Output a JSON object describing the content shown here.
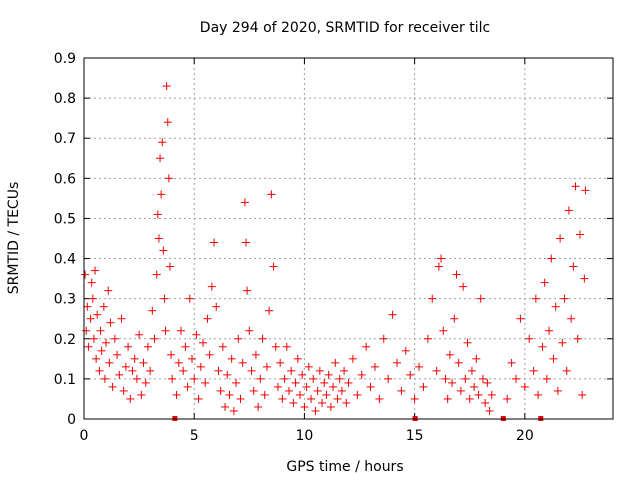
{
  "chart_data": {
    "type": "scatter",
    "title": "Day 294 of 2020, SRMTID for receiver tilc",
    "xlabel": "GPS time / hours",
    "ylabel": "SRMTID / TECUs",
    "xlim": [
      0,
      24
    ],
    "ylim": [
      0,
      0.9
    ],
    "xticks": [
      0,
      5,
      10,
      15,
      20
    ],
    "xtick_labels": [
      "0",
      "5",
      "10",
      "15",
      "20"
    ],
    "yticks": [
      0,
      0.1,
      0.2,
      0.3,
      0.4,
      0.5,
      0.6,
      0.7,
      0.8,
      0.9
    ],
    "ytick_labels": [
      "0",
      "0.1",
      "0.2",
      "0.3",
      "0.4",
      "0.5",
      "0.6",
      "0.7",
      "0.8",
      "0.9"
    ],
    "grid": true,
    "marker": "+",
    "color": "#ee0000",
    "series": [
      {
        "name": "SRMTID",
        "points": [
          [
            0.05,
            0.36
          ],
          [
            0.1,
            0.22
          ],
          [
            0.15,
            0.28
          ],
          [
            0.2,
            0.18
          ],
          [
            0.3,
            0.25
          ],
          [
            0.35,
            0.34
          ],
          [
            0.4,
            0.3
          ],
          [
            0.45,
            0.2
          ],
          [
            0.5,
            0.37
          ],
          [
            0.55,
            0.15
          ],
          [
            0.6,
            0.26
          ],
          [
            0.7,
            0.12
          ],
          [
            0.75,
            0.22
          ],
          [
            0.8,
            0.17
          ],
          [
            0.9,
            0.28
          ],
          [
            0.95,
            0.1
          ],
          [
            1.0,
            0.19
          ],
          [
            1.1,
            0.32
          ],
          [
            1.15,
            0.14
          ],
          [
            1.2,
            0.24
          ],
          [
            1.3,
            0.08
          ],
          [
            1.4,
            0.2
          ],
          [
            1.5,
            0.16
          ],
          [
            1.6,
            0.11
          ],
          [
            1.7,
            0.25
          ],
          [
            1.8,
            0.07
          ],
          [
            1.9,
            0.13
          ],
          [
            2.0,
            0.18
          ],
          [
            2.1,
            0.05
          ],
          [
            2.2,
            0.12
          ],
          [
            2.3,
            0.15
          ],
          [
            2.4,
            0.1
          ],
          [
            2.5,
            0.21
          ],
          [
            2.6,
            0.06
          ],
          [
            2.7,
            0.14
          ],
          [
            2.8,
            0.09
          ],
          [
            2.9,
            0.18
          ],
          [
            3.0,
            0.12
          ],
          [
            3.1,
            0.27
          ],
          [
            3.2,
            0.2
          ],
          [
            3.3,
            0.36
          ],
          [
            3.35,
            0.51
          ],
          [
            3.4,
            0.45
          ],
          [
            3.45,
            0.65
          ],
          [
            3.5,
            0.56
          ],
          [
            3.55,
            0.69
          ],
          [
            3.6,
            0.42
          ],
          [
            3.65,
            0.3
          ],
          [
            3.7,
            0.22
          ],
          [
            3.75,
            0.83
          ],
          [
            3.8,
            0.74
          ],
          [
            3.85,
            0.6
          ],
          [
            3.9,
            0.38
          ],
          [
            3.95,
            0.16
          ],
          [
            4.0,
            0.1
          ],
          [
            4.2,
            0.06
          ],
          [
            4.3,
            0.14
          ],
          [
            4.4,
            0.22
          ],
          [
            4.5,
            0.12
          ],
          [
            4.6,
            0.18
          ],
          [
            4.7,
            0.08
          ],
          [
            4.8,
            0.3
          ],
          [
            4.9,
            0.15
          ],
          [
            5.0,
            0.1
          ],
          [
            5.1,
            0.21
          ],
          [
            5.2,
            0.05
          ],
          [
            5.3,
            0.13
          ],
          [
            5.4,
            0.19
          ],
          [
            5.5,
            0.09
          ],
          [
            5.6,
            0.25
          ],
          [
            5.7,
            0.16
          ],
          [
            5.8,
            0.33
          ],
          [
            5.9,
            0.44
          ],
          [
            6.0,
            0.28
          ],
          [
            6.1,
            0.12
          ],
          [
            6.2,
            0.07
          ],
          [
            6.3,
            0.18
          ],
          [
            6.4,
            0.03
          ],
          [
            6.5,
            0.11
          ],
          [
            6.6,
            0.06
          ],
          [
            6.7,
            0.15
          ],
          [
            6.8,
            0.02
          ],
          [
            6.9,
            0.09
          ],
          [
            7.0,
            0.2
          ],
          [
            7.1,
            0.05
          ],
          [
            7.2,
            0.14
          ],
          [
            7.3,
            0.54
          ],
          [
            7.35,
            0.44
          ],
          [
            7.4,
            0.32
          ],
          [
            7.5,
            0.22
          ],
          [
            7.6,
            0.12
          ],
          [
            7.7,
            0.07
          ],
          [
            7.8,
            0.16
          ],
          [
            7.9,
            0.03
          ],
          [
            8.0,
            0.1
          ],
          [
            8.1,
            0.2
          ],
          [
            8.2,
            0.06
          ],
          [
            8.3,
            0.13
          ],
          [
            8.4,
            0.27
          ],
          [
            8.5,
            0.56
          ],
          [
            8.6,
            0.38
          ],
          [
            8.7,
            0.18
          ],
          [
            8.8,
            0.08
          ],
          [
            8.9,
            0.14
          ],
          [
            9.0,
            0.05
          ],
          [
            9.1,
            0.1
          ],
          [
            9.2,
            0.18
          ],
          [
            9.3,
            0.07
          ],
          [
            9.4,
            0.12
          ],
          [
            9.5,
            0.04
          ],
          [
            9.6,
            0.09
          ],
          [
            9.7,
            0.15
          ],
          [
            9.8,
            0.06
          ],
          [
            9.9,
            0.11
          ],
          [
            10.0,
            0.03
          ],
          [
            10.1,
            0.08
          ],
          [
            10.2,
            0.13
          ],
          [
            10.3,
            0.05
          ],
          [
            10.4,
            0.1
          ],
          [
            10.5,
            0.02
          ],
          [
            10.6,
            0.07
          ],
          [
            10.7,
            0.12
          ],
          [
            10.8,
            0.04
          ],
          [
            10.9,
            0.09
          ],
          [
            11.0,
            0.06
          ],
          [
            11.1,
            0.11
          ],
          [
            11.2,
            0.03
          ],
          [
            11.3,
            0.08
          ],
          [
            11.4,
            0.14
          ],
          [
            11.5,
            0.05
          ],
          [
            11.6,
            0.1
          ],
          [
            11.7,
            0.07
          ],
          [
            11.8,
            0.12
          ],
          [
            11.9,
            0.04
          ],
          [
            12.0,
            0.09
          ],
          [
            12.2,
            0.15
          ],
          [
            12.4,
            0.06
          ],
          [
            12.6,
            0.11
          ],
          [
            12.8,
            0.18
          ],
          [
            13.0,
            0.08
          ],
          [
            13.2,
            0.13
          ],
          [
            13.4,
            0.05
          ],
          [
            13.6,
            0.2
          ],
          [
            13.8,
            0.1
          ],
          [
            14.0,
            0.26
          ],
          [
            14.2,
            0.14
          ],
          [
            14.4,
            0.07
          ],
          [
            14.6,
            0.17
          ],
          [
            14.8,
            0.11
          ],
          [
            15.0,
            0.05
          ],
          [
            15.2,
            0.13
          ],
          [
            15.4,
            0.08
          ],
          [
            15.6,
            0.2
          ],
          [
            15.8,
            0.3
          ],
          [
            16.0,
            0.12
          ],
          [
            16.1,
            0.38
          ],
          [
            16.2,
            0.4
          ],
          [
            16.3,
            0.22
          ],
          [
            16.4,
            0.1
          ],
          [
            16.5,
            0.05
          ],
          [
            16.6,
            0.16
          ],
          [
            16.7,
            0.09
          ],
          [
            16.8,
            0.25
          ],
          [
            16.9,
            0.36
          ],
          [
            17.0,
            0.14
          ],
          [
            17.1,
            0.07
          ],
          [
            17.2,
            0.33
          ],
          [
            17.3,
            0.1
          ],
          [
            17.4,
            0.19
          ],
          [
            17.5,
            0.05
          ],
          [
            17.6,
            0.12
          ],
          [
            17.7,
            0.08
          ],
          [
            17.8,
            0.15
          ],
          [
            17.9,
            0.06
          ],
          [
            18.0,
            0.3
          ],
          [
            18.1,
            0.1
          ],
          [
            18.2,
            0.04
          ],
          [
            18.3,
            0.09
          ],
          [
            18.4,
            0.02
          ],
          [
            18.5,
            0.06
          ],
          [
            19.2,
            0.05
          ],
          [
            19.4,
            0.14
          ],
          [
            19.6,
            0.1
          ],
          [
            19.8,
            0.25
          ],
          [
            20.0,
            0.08
          ],
          [
            20.2,
            0.2
          ],
          [
            20.4,
            0.12
          ],
          [
            20.5,
            0.3
          ],
          [
            20.6,
            0.06
          ],
          [
            20.8,
            0.18
          ],
          [
            20.9,
            0.34
          ],
          [
            21.0,
            0.1
          ],
          [
            21.1,
            0.22
          ],
          [
            21.2,
            0.4
          ],
          [
            21.3,
            0.15
          ],
          [
            21.4,
            0.28
          ],
          [
            21.5,
            0.07
          ],
          [
            21.6,
            0.45
          ],
          [
            21.7,
            0.19
          ],
          [
            21.8,
            0.3
          ],
          [
            21.9,
            0.12
          ],
          [
            22.0,
            0.52
          ],
          [
            22.1,
            0.25
          ],
          [
            22.2,
            0.38
          ],
          [
            22.3,
            0.58
          ],
          [
            22.4,
            0.2
          ],
          [
            22.5,
            0.46
          ],
          [
            22.6,
            0.06
          ],
          [
            22.7,
            0.35
          ],
          [
            22.75,
            0.57
          ]
        ]
      }
    ],
    "gaps_hours": [
      4.1,
      15.0,
      19.0,
      20.7
    ]
  }
}
